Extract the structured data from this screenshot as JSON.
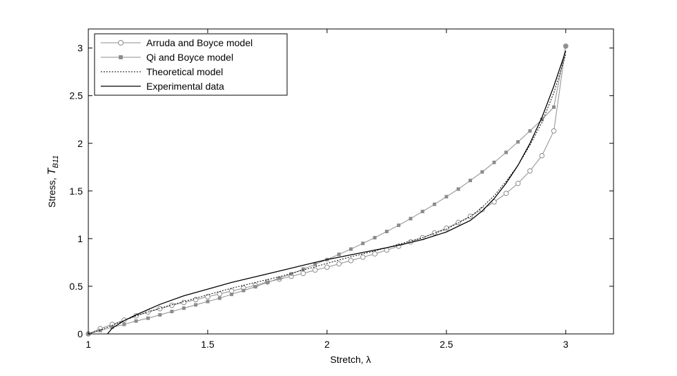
{
  "chart_data": {
    "type": "line",
    "title": "",
    "xlabel": "Stretch, λ",
    "ylabel_prefix": "Stress, ",
    "ylabel_symbol": "T",
    "ylabel_subscript": "B11",
    "xlim": [
      1,
      3.2
    ],
    "ylim": [
      0,
      3.2
    ],
    "xticks": [
      1,
      1.5,
      2,
      2.5,
      3
    ],
    "xtick_labels": [
      "1",
      "1.5",
      "2",
      "2.5",
      "3"
    ],
    "yticks": [
      0,
      0.5,
      1,
      1.5,
      2,
      2.5,
      3
    ],
    "ytick_labels": [
      "0",
      "0.5",
      "1",
      "1.5",
      "2",
      "2.5",
      "3"
    ],
    "grid": false,
    "legend_position": "top-left",
    "series": [
      {
        "name": "Arruda and Boyce model",
        "color": "#8c8c8c",
        "line_style": "solid",
        "marker": "circle",
        "x": [
          1.0,
          1.05,
          1.1,
          1.15,
          1.2,
          1.25,
          1.3,
          1.35,
          1.4,
          1.45,
          1.5,
          1.55,
          1.6,
          1.65,
          1.7,
          1.75,
          1.8,
          1.85,
          1.9,
          1.95,
          2.0,
          2.05,
          2.1,
          2.15,
          2.2,
          2.25,
          2.3,
          2.35,
          2.4,
          2.45,
          2.5,
          2.55,
          2.6,
          2.65,
          2.7,
          2.75,
          2.8,
          2.85,
          2.9,
          2.95,
          3.0
        ],
        "y": [
          0.0,
          0.055,
          0.1,
          0.145,
          0.19,
          0.23,
          0.265,
          0.3,
          0.33,
          0.36,
          0.39,
          0.42,
          0.45,
          0.48,
          0.51,
          0.545,
          0.575,
          0.605,
          0.635,
          0.67,
          0.7,
          0.735,
          0.77,
          0.805,
          0.84,
          0.88,
          0.92,
          0.965,
          1.01,
          1.06,
          1.11,
          1.17,
          1.235,
          1.305,
          1.385,
          1.475,
          1.58,
          1.71,
          1.87,
          2.13,
          3.02
        ]
      },
      {
        "name": "Qi and Boyce model",
        "color": "#8c8c8c",
        "line_style": "solid",
        "marker": "square",
        "x": [
          1.0,
          1.05,
          1.1,
          1.15,
          1.2,
          1.25,
          1.3,
          1.35,
          1.4,
          1.45,
          1.5,
          1.55,
          1.6,
          1.65,
          1.7,
          1.75,
          1.8,
          1.85,
          1.9,
          1.95,
          2.0,
          2.05,
          2.1,
          2.15,
          2.2,
          2.25,
          2.3,
          2.35,
          2.4,
          2.45,
          2.5,
          2.55,
          2.6,
          2.65,
          2.7,
          2.75,
          2.8,
          2.85,
          2.9,
          2.95,
          3.0
        ],
        "y": [
          0.0,
          0.035,
          0.07,
          0.1,
          0.135,
          0.165,
          0.2,
          0.235,
          0.27,
          0.305,
          0.34,
          0.375,
          0.415,
          0.455,
          0.495,
          0.54,
          0.585,
          0.63,
          0.68,
          0.73,
          0.78,
          0.835,
          0.89,
          0.95,
          1.01,
          1.075,
          1.14,
          1.21,
          1.285,
          1.36,
          1.44,
          1.52,
          1.61,
          1.7,
          1.8,
          1.905,
          2.015,
          2.13,
          2.25,
          2.38,
          3.02
        ]
      },
      {
        "name": "Theoretical model",
        "color": "#000000",
        "line_style": "dotted",
        "marker": "none",
        "x": [
          1.0,
          1.05,
          1.1,
          1.15,
          1.2,
          1.3,
          1.4,
          1.5,
          1.6,
          1.7,
          1.8,
          1.9,
          2.0,
          2.1,
          2.2,
          2.3,
          2.4,
          2.5,
          2.6,
          2.65,
          2.7,
          2.75,
          2.8,
          2.85,
          2.9,
          2.95,
          3.0
        ],
        "y": [
          0.0,
          0.04,
          0.09,
          0.14,
          0.19,
          0.27,
          0.34,
          0.41,
          0.48,
          0.54,
          0.6,
          0.67,
          0.74,
          0.81,
          0.87,
          0.94,
          1.01,
          1.1,
          1.23,
          1.33,
          1.45,
          1.6,
          1.77,
          1.98,
          2.22,
          2.53,
          2.93
        ]
      },
      {
        "name": "Experimental data",
        "color": "#000000",
        "line_style": "solid",
        "marker": "none",
        "x": [
          1.08,
          1.1,
          1.15,
          1.2,
          1.3,
          1.4,
          1.5,
          1.6,
          1.7,
          1.8,
          1.9,
          2.0,
          2.1,
          2.2,
          2.3,
          2.4,
          2.5,
          2.6,
          2.65,
          2.7,
          2.75,
          2.8,
          2.85,
          2.9,
          2.95,
          3.0
        ],
        "y": [
          0.0,
          0.06,
          0.14,
          0.2,
          0.31,
          0.4,
          0.47,
          0.54,
          0.6,
          0.66,
          0.72,
          0.78,
          0.83,
          0.88,
          0.93,
          0.99,
          1.07,
          1.19,
          1.29,
          1.42,
          1.58,
          1.77,
          2.0,
          2.27,
          2.6,
          2.97
        ]
      }
    ]
  }
}
